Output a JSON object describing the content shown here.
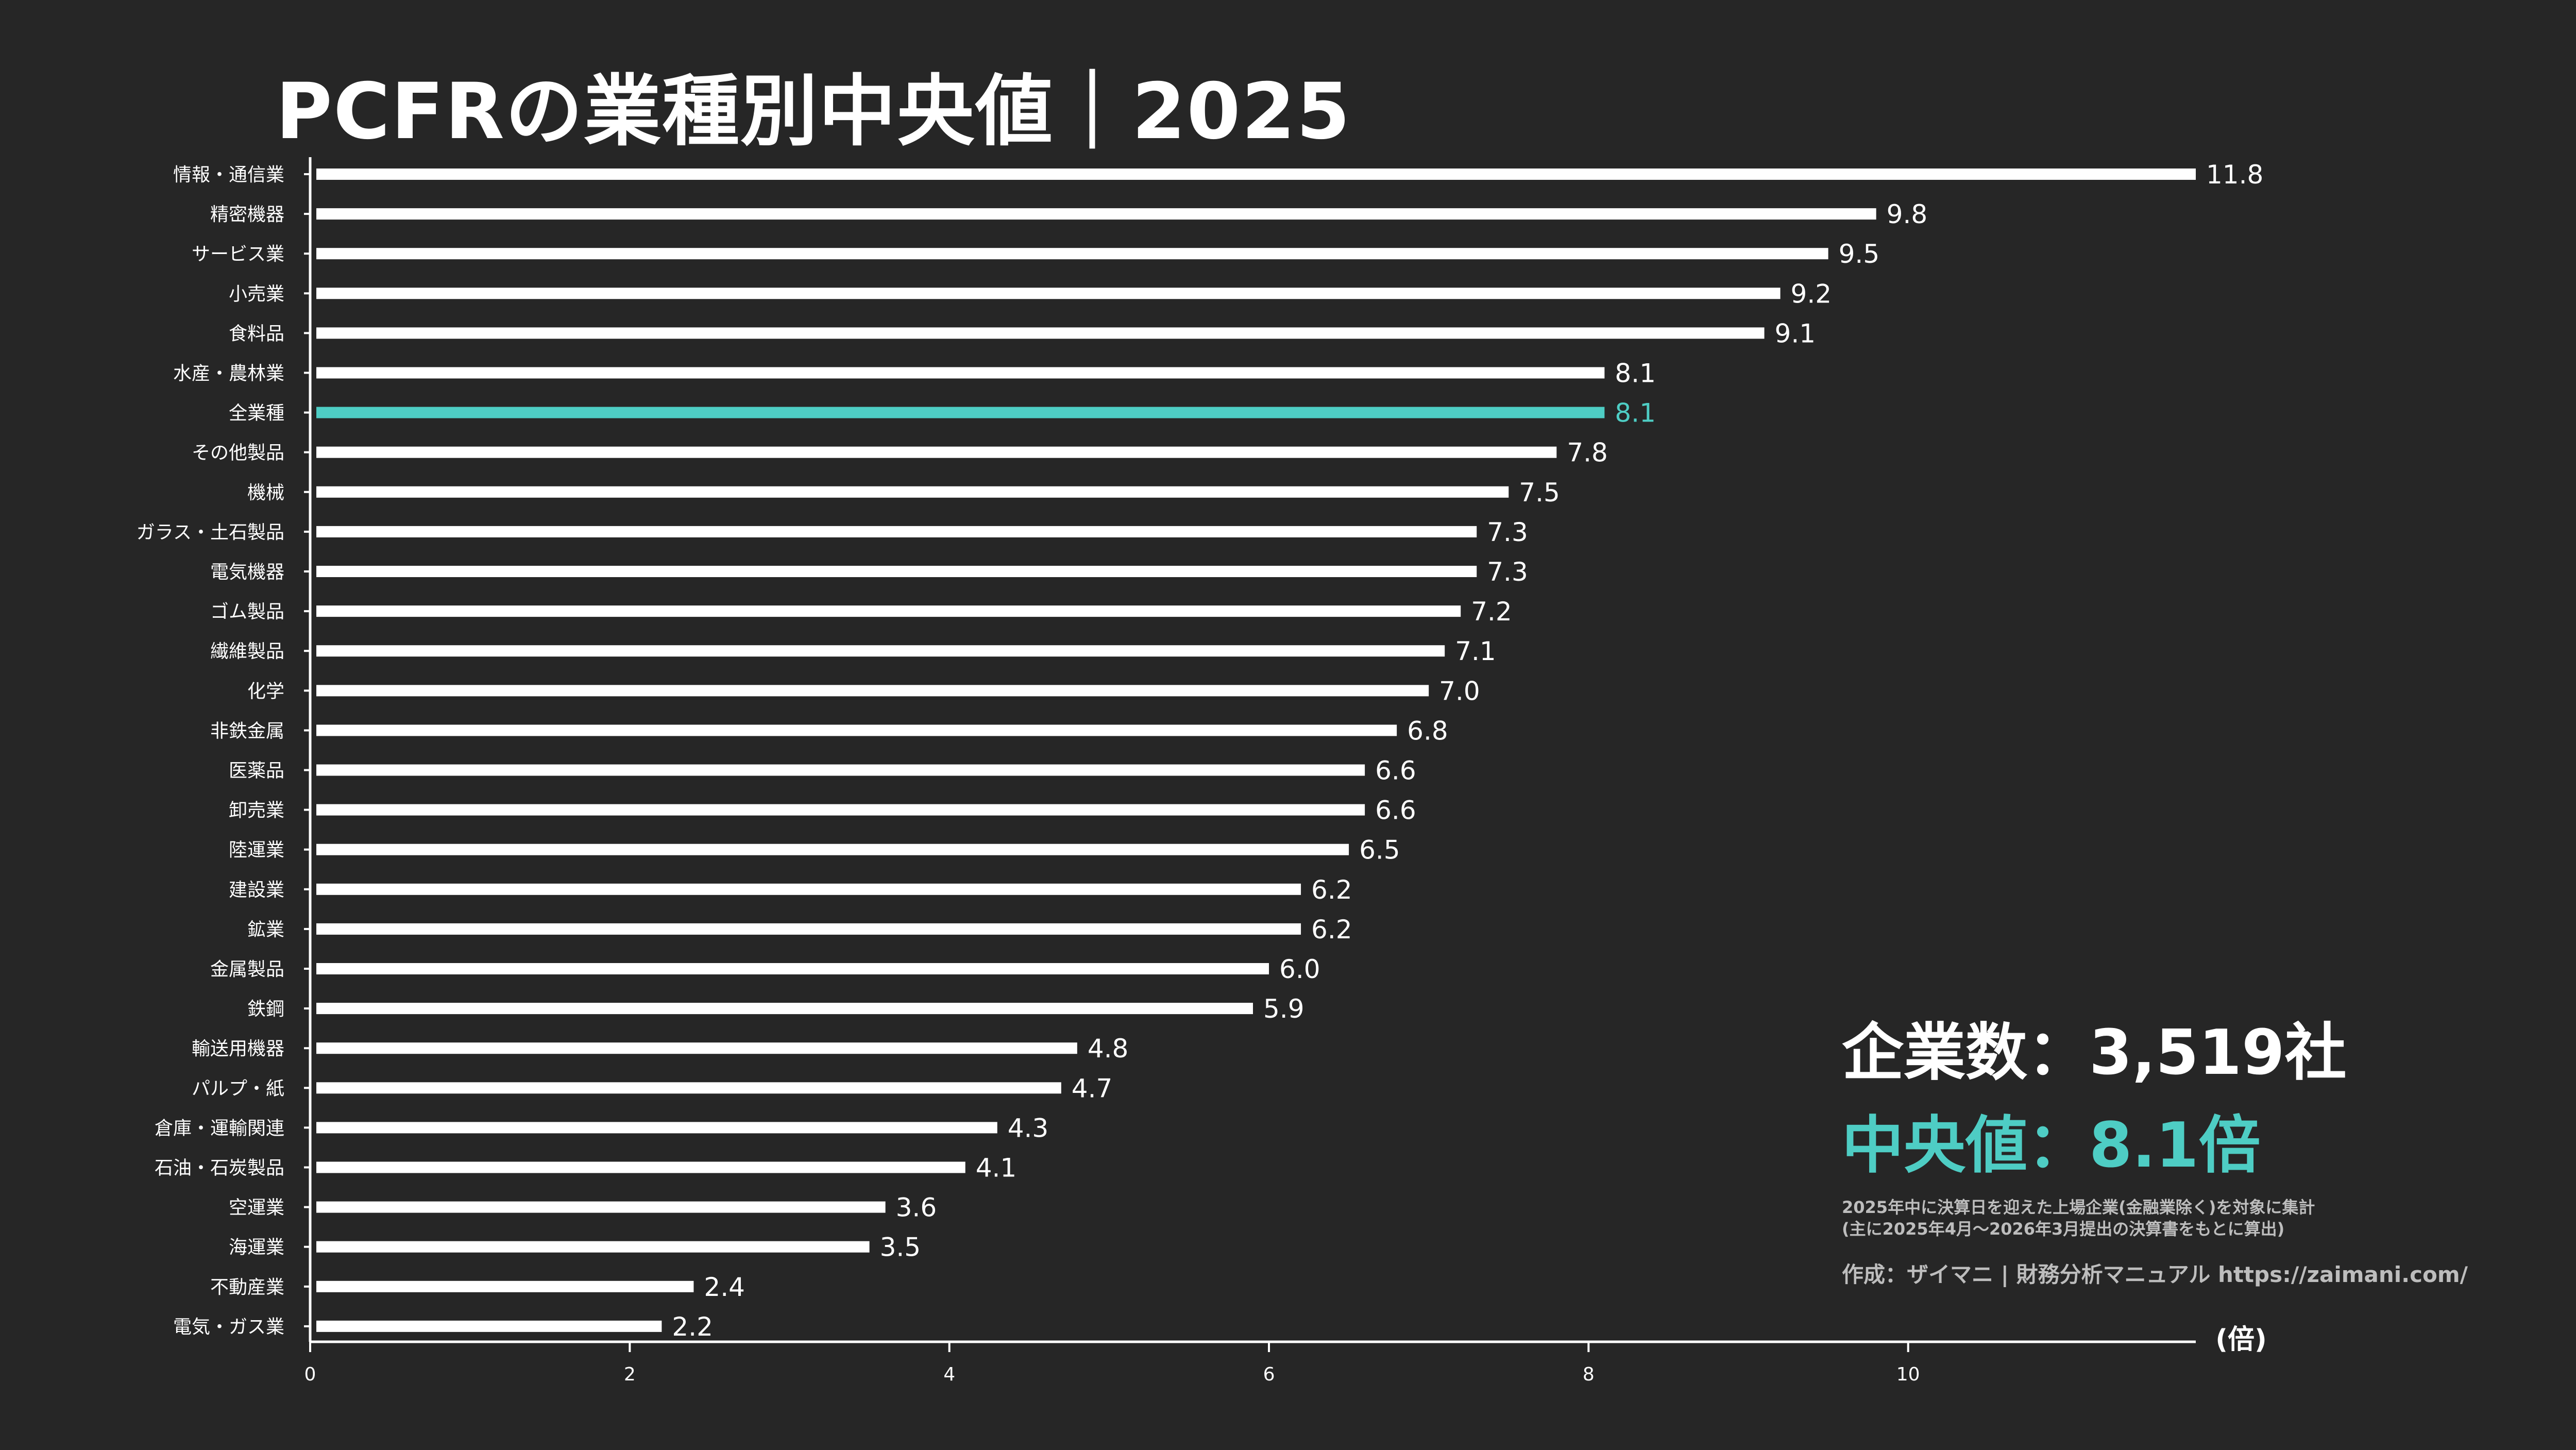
{
  "title": "PCFRの業種別中央値｜2025",
  "summary": {
    "count_text": "企業数：3,519社",
    "median_text": "中央値：8.1倍",
    "note_lines": [
      "2025年中に決算日を迎えた上場企業(金融業除く)を対象に集計",
      "(主に2025年4月〜2026年3月提出の決算書をもとに算出)"
    ],
    "credit": "作成：ザイマニ | 財務分析マニュアル https://zaimani.com/"
  },
  "colors": {
    "background": "#262626",
    "bar": "#ffffff",
    "highlight": "#4ecdc4",
    "text": "#ffffff",
    "note": "#bdbdbd"
  },
  "chart_data": {
    "type": "bar",
    "orientation": "horizontal",
    "title": "PCFRの業種別中央値｜2025",
    "xlabel": "",
    "ylabel": "",
    "unit_label": "(倍)",
    "xlim": [
      0,
      11.8
    ],
    "xticks": [
      0,
      2,
      4,
      6,
      8,
      10
    ],
    "grid": false,
    "highlight_category": "全業種",
    "categories": [
      "情報・通信業",
      "精密機器",
      "サービス業",
      "小売業",
      "食料品",
      "水産・農林業",
      "全業種",
      "その他製品",
      "機械",
      "ガラス・土石製品",
      "電気機器",
      "ゴム製品",
      "繊維製品",
      "化学",
      "非鉄金属",
      "医薬品",
      "卸売業",
      "陸運業",
      "建設業",
      "鉱業",
      "金属製品",
      "鉄鋼",
      "輸送用機器",
      "パルプ・紙",
      "倉庫・運輸関連",
      "石油・石炭製品",
      "空運業",
      "海運業",
      "不動産業",
      "電気・ガス業"
    ],
    "values": [
      11.8,
      9.8,
      9.5,
      9.2,
      9.1,
      8.1,
      8.1,
      7.8,
      7.5,
      7.3,
      7.3,
      7.2,
      7.1,
      7.0,
      6.8,
      6.6,
      6.6,
      6.5,
      6.2,
      6.2,
      6.0,
      5.9,
      4.8,
      4.7,
      4.3,
      4.1,
      3.6,
      3.5,
      2.4,
      2.2
    ],
    "value_labels": [
      "11.8",
      "9.8",
      "9.5",
      "9.2",
      "9.1",
      "8.1",
      "8.1",
      "7.8",
      "7.5",
      "7.3",
      "7.3",
      "7.2",
      "7.1",
      "7.0",
      "6.8",
      "6.6",
      "6.6",
      "6.5",
      "6.2",
      "6.2",
      "6.0",
      "5.9",
      "4.8",
      "4.7",
      "4.3",
      "4.1",
      "3.6",
      "3.5",
      "2.4",
      "2.2"
    ]
  }
}
